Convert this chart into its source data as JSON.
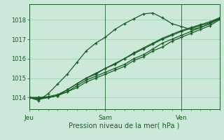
{
  "background_color": "#cce8d8",
  "grid_color": "#99ccaa",
  "line_color": "#1a5c28",
  "xlabel": "Pression niveau de la mer( hPa )",
  "xlabel_color": "#1a5c28",
  "tick_color": "#1a5c28",
  "ylim": [
    1013.4,
    1018.8
  ],
  "yticks": [
    1014,
    1015,
    1016,
    1017,
    1018
  ],
  "xlim": [
    0,
    120
  ],
  "day_labels": [
    "Jeu",
    "Sam",
    "Ven"
  ],
  "day_positions": [
    0,
    48,
    96
  ],
  "lines": [
    {
      "x": [
        0,
        6,
        12,
        18,
        24,
        30,
        36,
        42,
        48,
        54,
        60,
        66,
        72,
        78,
        84,
        90,
        96,
        102,
        108,
        114,
        120
      ],
      "y": [
        1014.0,
        1014.0,
        1014.0,
        1014.1,
        1014.3,
        1014.5,
        1014.8,
        1015.0,
        1015.2,
        1015.4,
        1015.6,
        1015.9,
        1016.1,
        1016.4,
        1016.6,
        1016.9,
        1017.1,
        1017.3,
        1017.5,
        1017.7,
        1018.0
      ]
    },
    {
      "x": [
        0,
        6,
        12,
        18,
        24,
        30,
        36,
        42,
        48,
        54,
        60,
        66,
        72,
        78,
        84,
        90,
        96,
        102,
        108,
        114,
        120
      ],
      "y": [
        1014.0,
        1013.9,
        1014.0,
        1014.1,
        1014.3,
        1014.6,
        1014.9,
        1015.1,
        1015.3,
        1015.5,
        1015.7,
        1016.0,
        1016.2,
        1016.5,
        1016.8,
        1017.0,
        1017.2,
        1017.4,
        1017.6,
        1017.8,
        1018.05
      ]
    },
    {
      "x": [
        0,
        6,
        12,
        18,
        24,
        30,
        36,
        42,
        48,
        54,
        60,
        66,
        72,
        78,
        84,
        90,
        96,
        102,
        108,
        114,
        120
      ],
      "y": [
        1014.0,
        1013.95,
        1014.0,
        1014.1,
        1014.4,
        1014.7,
        1015.0,
        1015.2,
        1015.5,
        1015.7,
        1016.0,
        1016.25,
        1016.5,
        1016.75,
        1017.0,
        1017.2,
        1017.4,
        1017.55,
        1017.7,
        1017.85,
        1018.1
      ]
    },
    {
      "x": [
        0,
        6,
        12,
        18,
        24,
        30,
        36,
        42,
        48,
        54,
        60,
        66,
        72,
        78,
        84,
        90,
        96,
        102,
        108,
        114,
        120
      ],
      "y": [
        1014.0,
        1014.0,
        1014.05,
        1014.15,
        1014.4,
        1014.7,
        1015.0,
        1015.25,
        1015.5,
        1015.75,
        1016.0,
        1016.3,
        1016.55,
        1016.8,
        1017.05,
        1017.25,
        1017.45,
        1017.6,
        1017.75,
        1017.9,
        1018.1
      ]
    },
    {
      "x": [
        0,
        6,
        12,
        18,
        24,
        30,
        36,
        42,
        48,
        54,
        60,
        66,
        72,
        78,
        84,
        90,
        96,
        102,
        108,
        114,
        120
      ],
      "y": [
        1014.0,
        1013.85,
        1014.2,
        1014.7,
        1015.2,
        1015.8,
        1016.4,
        1016.8,
        1017.1,
        1017.5,
        1017.8,
        1018.05,
        1018.3,
        1018.35,
        1018.1,
        1017.8,
        1017.65,
        1017.5,
        1017.6,
        1017.8,
        1018.05
      ]
    }
  ]
}
